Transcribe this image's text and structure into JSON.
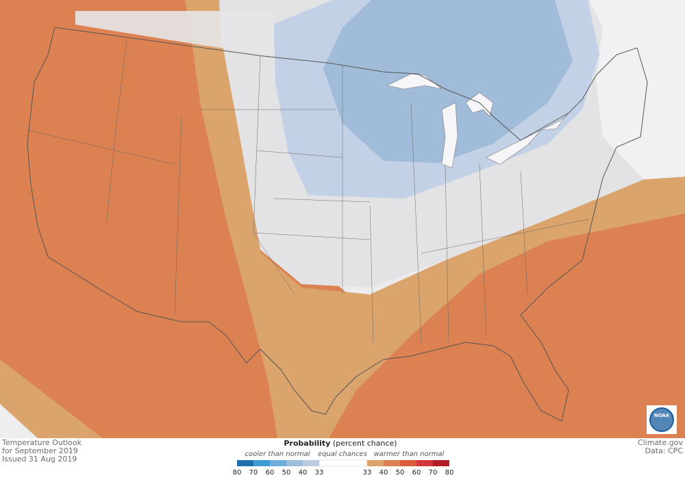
{
  "map": {
    "caption": [
      "Temperature Outlook",
      "for September 2019",
      "Issued 31 Aug 2019"
    ],
    "credit": [
      "Climate.gov",
      "Data: CPC"
    ],
    "logo": "NOAA",
    "legend": {
      "title": "Probability",
      "title_note": "(percent chance)",
      "cool_label": "cooler than normal",
      "equal_label": "equal chances",
      "warm_label": "warmer than normal",
      "cool": {
        "ticks": [
          80,
          70,
          60,
          50,
          40,
          33
        ],
        "colors": [
          "#1f6fae",
          "#3d9bd6",
          "#6eaedd",
          "#9bbedd",
          "#bccbe2"
        ]
      },
      "equal_color": "#ffffff",
      "warm": {
        "ticks": [
          33,
          40,
          50,
          60,
          70,
          80
        ],
        "colors": [
          "#dba46c",
          "#db8152",
          "#dc5b3d",
          "#d0373a",
          "#b31d25"
        ]
      }
    }
  }
}
